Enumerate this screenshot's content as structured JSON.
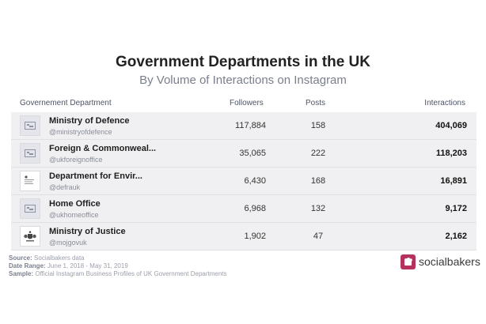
{
  "title": "Government Departments in the UK",
  "subtitle": "By Volume of Interactions on Instagram",
  "table": {
    "headers": {
      "department": "Governement Department",
      "followers": "Followers",
      "posts": "Posts",
      "interactions": "Interactions"
    },
    "rows": [
      {
        "name": "Ministry of Defence",
        "handle": "@ministryofdefence",
        "followers": "117,884",
        "posts": "158",
        "interactions": "404,069",
        "avatar_icon": "image-placeholder-icon"
      },
      {
        "name": "Foreign & Commonweal...",
        "handle": "@ukforeignoffice",
        "followers": "35,065",
        "posts": "222",
        "interactions": "118,203",
        "avatar_icon": "image-placeholder-icon"
      },
      {
        "name": "Department for Envir...",
        "handle": "@defrauk",
        "followers": "6,430",
        "posts": "168",
        "interactions": "16,891",
        "avatar_icon": "crest-icon"
      },
      {
        "name": "Home Office",
        "handle": "@ukhomeoffice",
        "followers": "6,968",
        "posts": "132",
        "interactions": "9,172",
        "avatar_icon": "image-placeholder-icon"
      },
      {
        "name": "Ministry of Justice",
        "handle": "@mojgovuk",
        "followers": "1,902",
        "posts": "47",
        "interactions": "2,162",
        "avatar_icon": "royal-arms-icon"
      }
    ]
  },
  "footer": {
    "source_label": "Source:",
    "source_value": "Socialbakers data",
    "date_label": "Date Range:",
    "date_value": "June 1, 2018 - May 31, 2019",
    "sample_label": "Sample:",
    "sample_value": "Official Instagram Business Profiles of UK Government Departments"
  },
  "brand": {
    "name": "socialbakers",
    "logo_icon": "socialbakers-logo-icon",
    "color": "#b5315e"
  },
  "colors": {
    "row_shade": "#f0f0f2",
    "subtitle": "#7a7f8c"
  }
}
